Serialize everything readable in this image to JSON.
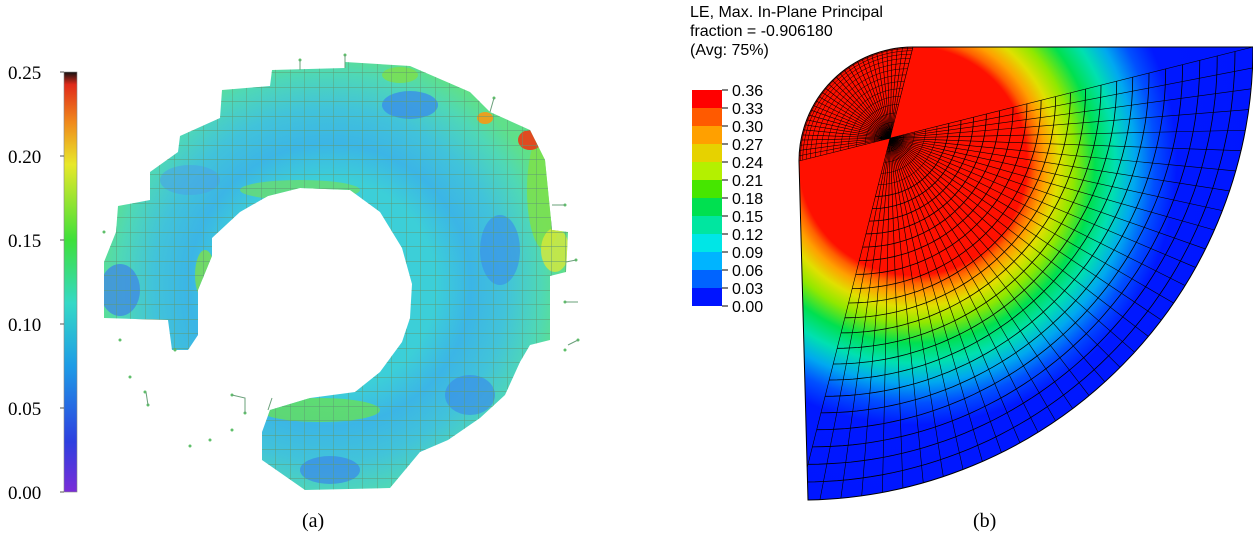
{
  "panel_a": {
    "caption": "(a)",
    "scale_ticks": [
      "0.25",
      "0.20",
      "0.15",
      "0.10",
      "0.05",
      "0.00"
    ],
    "colors": {
      "bottom": "#7a2cd8",
      "low": "#1d4fe0",
      "mid_low": "#1e9ce6",
      "mid": "#35d9c6",
      "green": "#3ee03a",
      "yellow": "#e8e82a",
      "orange": "#f08a1c",
      "red": "#e02a1a",
      "top": "#111111",
      "mesh_line": "#6aa07a"
    }
  },
  "panel_b": {
    "caption": "(b)",
    "header": {
      "line1": "LE, Max. In-Plane Principal",
      "line2": "fraction = -0.906180",
      "line3": "(Avg: 75%)"
    },
    "legend_values": [
      "0.36",
      "0.33",
      "0.30",
      "0.27",
      "0.24",
      "0.21",
      "0.18",
      "0.15",
      "0.12",
      "0.09",
      "0.06",
      "0.03",
      "0.00"
    ],
    "legend_colors": [
      "#ff0000",
      "#ff5a00",
      "#ffa000",
      "#e6d200",
      "#b4f000",
      "#46e600",
      "#00e050",
      "#00e6a0",
      "#00e6e6",
      "#00b4ff",
      "#0064ff",
      "#0014ff"
    ]
  }
}
